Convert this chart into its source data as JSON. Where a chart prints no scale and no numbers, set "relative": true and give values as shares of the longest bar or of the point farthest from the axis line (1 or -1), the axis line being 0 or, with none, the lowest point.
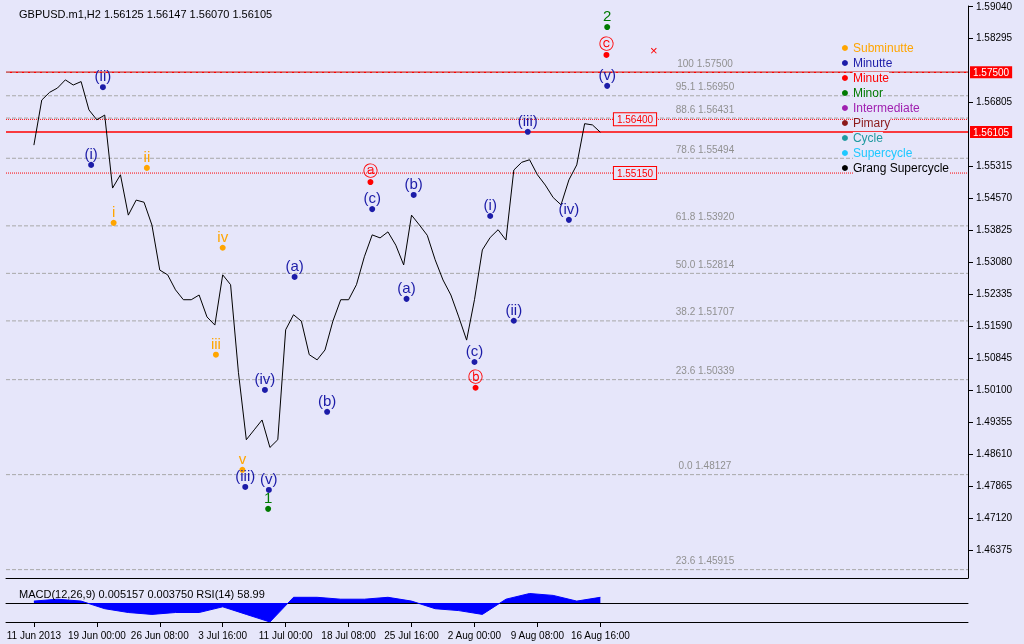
{
  "chart_data": [
    {
      "type": "line",
      "title": "GBPUSD.m1,H2 1.56125 1.56147 1.56070 1.56105",
      "xlim": [
        "2013-06-08T10:00",
        "2013-09-28T12:00"
      ],
      "ylim": [
        1.4572,
        1.5904
      ],
      "yticks": [
        {
          "value": 1.46375,
          "label": "1.46375"
        },
        {
          "value": 1.4712,
          "label": "1.47120"
        },
        {
          "value": 1.47865,
          "label": "1.47865"
        },
        {
          "value": 1.4861,
          "label": "1.48610"
        },
        {
          "value": 1.49355,
          "label": "1.49355"
        },
        {
          "value": 1.501,
          "label": "1.50100"
        },
        {
          "value": 1.50845,
          "label": "1.50845"
        },
        {
          "value": 1.5159,
          "label": "1.51590"
        },
        {
          "value": 1.52335,
          "label": "1.52335"
        },
        {
          "value": 1.5308,
          "label": "1.53080"
        },
        {
          "value": 1.53825,
          "label": "1.53825"
        },
        {
          "value": 1.5457,
          "label": "1.54570"
        },
        {
          "value": 1.55315,
          "label": "1.55315"
        },
        {
          "value": 1.56805,
          "label": "1.56805"
        },
        {
          "value": 1.58295,
          "label": "1.58295"
        },
        {
          "value": 1.5904,
          "label": "1.59040"
        }
      ],
      "tick_labels": "y",
      "legend": "top right",
      "series": [
        {
          "color": "#000000",
          "x": [
            "2013-06-11T16:00",
            "2013-06-12T14:00",
            "2013-06-13T12:00",
            "2013-06-14T10:00",
            "2013-06-15T08:00",
            "2013-06-16T06:00",
            "2013-06-17T04:00",
            "2013-06-18T02:00",
            "2013-06-19T00:00",
            "2013-06-19T22:00",
            "2013-06-20T20:00",
            "2013-06-21T18:00",
            "2013-06-22T16:00",
            "2013-06-23T14:00",
            "2013-06-24T12:00",
            "2013-06-25T10:00",
            "2013-06-26T08:00",
            "2013-06-27T06:00",
            "2013-06-28T04:00",
            "2013-06-29T02:00",
            "2013-06-30T00:00",
            "2013-06-30T22:00",
            "2013-07-01T20:00",
            "2013-07-02T18:00",
            "2013-07-03T16:00",
            "2013-07-04T14:00",
            "2013-07-05T12:00",
            "2013-07-06T10:00",
            "2013-07-07T08:00",
            "2013-07-08T06:00",
            "2013-07-09T04:00",
            "2013-07-10T02:00",
            "2013-07-11T00:00",
            "2013-07-11T22:00",
            "2013-07-12T20:00",
            "2013-07-13T18:00",
            "2013-07-14T16:00",
            "2013-07-15T14:00",
            "2013-07-16T12:00",
            "2013-07-17T10:00",
            "2013-07-18T08:00",
            "2013-07-19T06:00",
            "2013-07-20T04:00",
            "2013-07-21T02:00",
            "2013-07-22T00:00",
            "2013-07-22T22:00",
            "2013-07-23T20:00",
            "2013-07-24T18:00",
            "2013-07-25T16:00",
            "2013-07-26T14:00",
            "2013-07-27T12:00",
            "2013-07-28T10:00",
            "2013-07-29T08:00",
            "2013-07-30T06:00",
            "2013-07-31T04:00",
            "2013-08-01T02:00",
            "2013-08-02T00:00",
            "2013-08-02T22:00",
            "2013-08-03T20:00",
            "2013-08-04T18:00",
            "2013-08-05T16:00",
            "2013-08-06T14:00",
            "2013-08-07T12:00",
            "2013-08-08T10:00",
            "2013-08-09T08:00",
            "2013-08-10T06:00",
            "2013-08-11T04:00",
            "2013-08-12T02:00",
            "2013-08-13T00:00",
            "2013-08-13T22:00",
            "2013-08-14T20:00",
            "2013-08-15T18:00",
            "2013-08-16T16:00"
          ],
          "values": [
            1.558,
            1.5685,
            1.5703,
            1.5713,
            1.5732,
            1.572,
            1.5728,
            1.5662,
            1.5639,
            1.565,
            1.548,
            1.5511,
            1.5417,
            1.5452,
            1.5447,
            1.5394,
            1.5289,
            1.5278,
            1.5243,
            1.522,
            1.522,
            1.5231,
            1.518,
            1.5161,
            1.5278,
            1.5255,
            1.505,
            1.4894,
            1.4917,
            1.494,
            1.4876,
            1.4894,
            1.515,
            1.5185,
            1.517,
            1.5092,
            1.508,
            1.5103,
            1.517,
            1.522,
            1.522,
            1.5255,
            1.532,
            1.5371,
            1.5364,
            1.5378,
            1.5347,
            1.5301,
            1.5417,
            1.5394,
            1.537,
            1.5313,
            1.5266,
            1.5231,
            1.518,
            1.5126,
            1.522,
            1.5336,
            1.5365,
            1.5383,
            1.5359,
            1.5522,
            1.554,
            1.5546,
            1.5511,
            1.5487,
            1.5458,
            1.5441,
            1.5499,
            1.5534,
            1.563,
            1.5627,
            1.561
          ]
        },
        {
          "type": "scatter",
          "name": "Subminutte",
          "color": "#ffa500",
          "x": [
            "2013-06-20T23:00",
            "2013-06-24T20:00",
            "2013-07-02T21:00",
            "2013-07-03T16:00",
            "2013-07-05T23:00"
          ],
          "values": [
            1.5399,
            1.5527,
            1.5092,
            1.5341,
            1.4824
          ],
          "value_labels": [
            "i",
            "ii",
            "iii",
            "iv",
            "v"
          ]
        },
        {
          "type": "scatter",
          "name": "Minutte",
          "color": "#1c1ca8",
          "x": [
            "2013-06-18T08:00",
            "2013-06-19T17:00",
            "2013-07-06T07:00",
            "2013-07-08T14:00",
            "2013-07-09T01:00",
            "2013-07-12T01:00",
            "2013-07-15T20:00",
            "2013-07-21T02:00",
            "2013-07-25T02:00",
            "2013-07-25T22:00",
            "2013-08-02T00:00",
            "2013-08-03T20:00",
            "2013-08-06T14:00",
            "2013-08-08T05:00",
            "2013-08-13T00:00",
            "2013-08-17T11:00"
          ],
          "values": [
            1.5534,
            1.5715,
            1.4784,
            1.501,
            1.4777,
            1.5273,
            1.4959,
            1.5431,
            1.5222,
            1.5464,
            1.5075,
            1.5415,
            1.5171,
            1.5611,
            1.5406,
            1.5718
          ],
          "value_labels": [
            "(i)",
            "(ii)",
            "(iii)",
            "(iv)",
            "(v)",
            "(a)",
            "(b)",
            "(c)",
            "(a)",
            "(b)",
            "(c)",
            "(i)",
            "(ii)",
            "(iii)",
            "(iv)",
            "(v)"
          ]
        },
        {
          "type": "scatter",
          "name": "Minute",
          "color": "#ff0000",
          "x": [
            "2013-07-20T21:00",
            "2013-08-02T03:00",
            "2013-08-17T09:00"
          ],
          "values": [
            1.5494,
            1.5015,
            1.579
          ],
          "value_labels": [
            "ⓐ",
            "ⓑ",
            "ⓒ"
          ]
        },
        {
          "type": "scatter",
          "name": "Minor",
          "color": "#007a00",
          "x": [
            "2013-07-08T23:00",
            "2013-08-17T11:00"
          ],
          "values": [
            1.4733,
            1.5855
          ],
          "value_labels": [
            "1",
            "2"
          ]
        },
        {
          "type": "scatter",
          "name": "Intermediate",
          "color": "#a020b0"
        },
        {
          "type": "scatter",
          "name": "Pimary",
          "color": "#8b1a1a"
        },
        {
          "type": "scatter",
          "name": "Cycle",
          "color": "#1f9aa0"
        },
        {
          "type": "scatter",
          "name": "Supercycle",
          "color": "#1ec8ff"
        },
        {
          "type": "scatter",
          "name": "Grang Supercycle",
          "color": "#000000"
        }
      ],
      "ref_lines": [
        {
          "axis": "y",
          "value": 1.575,
          "label": "1.57500",
          "color": "#ff0000",
          "line_style": "solid"
        },
        {
          "axis": "y",
          "value": 1.56105,
          "label": "1.56105",
          "color": "#ff0000",
          "line_style": "solid"
        },
        {
          "axis": "y",
          "value": 1.564,
          "label": "1.56400",
          "color": "#ff0000",
          "line_style": "dotted"
        },
        {
          "axis": "y",
          "value": 1.5515,
          "label": "1.55150",
          "color": "#ff0000",
          "line_style": "dotted"
        },
        {
          "axis": "y",
          "value": 1.575,
          "label": "100 1.57500",
          "color": "#a8a8a8",
          "line_style": "dashed"
        },
        {
          "axis": "y",
          "value": 1.5695,
          "label": "95.1 1.56950",
          "color": "#a8a8a8",
          "line_style": "dashed"
        },
        {
          "axis": "y",
          "value": 1.56431,
          "label": "88.6 1.56431",
          "color": "#a8a8a8",
          "line_style": "dashed"
        },
        {
          "axis": "y",
          "value": 1.55494,
          "label": "78.6 1.55494",
          "color": "#a8a8a8",
          "line_style": "dashed"
        },
        {
          "axis": "y",
          "value": 1.5392,
          "label": "61.8 1.53920",
          "color": "#a8a8a8",
          "line_style": "dashed"
        },
        {
          "axis": "y",
          "value": 1.52814,
          "label": "50.0 1.52814",
          "color": "#a8a8a8",
          "line_style": "dashed"
        },
        {
          "axis": "y",
          "value": 1.51707,
          "label": "38.2 1.51707",
          "color": "#a8a8a8",
          "line_style": "dashed"
        },
        {
          "axis": "y",
          "value": 1.50339,
          "label": "23.6 1.50339",
          "color": "#a8a8a8",
          "line_style": "dashed"
        },
        {
          "axis": "y",
          "value": 1.48127,
          "label": "0.0 1.48127",
          "color": "#a8a8a8",
          "line_style": "dashed"
        },
        {
          "axis": "y",
          "value": 1.45915,
          "label": "23.6 1.45915",
          "color": "#a8a8a8",
          "line_style": "dashed"
        }
      ],
      "annotations": [
        "×"
      ]
    },
    {
      "type": "area",
      "title": "MACD(12,26,9) 0.005157 0.003750 RSI(14) 58.99",
      "relative": true,
      "xlim": [
        "2013-06-08T10:00",
        "2013-09-28T12:00"
      ],
      "xticks": [
        {
          "value": "2013-06-11T16:00",
          "label": "11 Jun 2013"
        },
        {
          "value": "2013-06-19T00:00",
          "label": "19 Jun 00:00"
        },
        {
          "value": "2013-06-26T08:00",
          "label": "26 Jun 08:00"
        },
        {
          "value": "2013-07-03T16:00",
          "label": "3 Jul 16:00"
        },
        {
          "value": "2013-07-11T00:00",
          "label": "11 Jul 00:00"
        },
        {
          "value": "2013-07-18T08:00",
          "label": "18 Jul 08:00"
        },
        {
          "value": "2013-07-25T16:00",
          "label": "25 Jul 16:00"
        },
        {
          "value": "2013-08-02T00:00",
          "label": "2 Aug 00:00"
        },
        {
          "value": "2013-08-09T08:00",
          "label": "9 Aug 08:00"
        },
        {
          "value": "2013-08-16T16:00",
          "label": "16 Aug 16:00"
        }
      ],
      "tick_labels": "x",
      "series": [
        {
          "color": "#0000ff",
          "x": [
            "2013-06-11T16:00",
            "2013-06-14T10:00",
            "2013-06-17T04:00",
            "2013-06-19T22:00",
            "2013-06-22T16:00",
            "2013-06-25T10:00",
            "2013-06-28T04:00",
            "2013-06-30T22:00",
            "2013-07-03T16:00",
            "2013-07-06T10:00",
            "2013-07-09T04:00",
            "2013-07-11T22:00",
            "2013-07-14T16:00",
            "2013-07-17T10:00",
            "2013-07-20T04:00",
            "2013-07-22T22:00",
            "2013-07-25T16:00",
            "2013-07-28T10:00",
            "2013-07-31T04:00",
            "2013-08-02T22:00",
            "2013-08-05T16:00",
            "2013-08-08T10:00",
            "2013-08-11T04:00",
            "2013-08-13T22:00",
            "2013-08-16T16:00"
          ],
          "values": [
            0.1,
            0.2,
            0.1,
            -0.3,
            -0.5,
            -0.6,
            -0.5,
            -0.5,
            -0.2,
            -0.6,
            -1,
            0.3,
            0.3,
            0.2,
            0.2,
            0.3,
            0.1,
            -0.3,
            -0.4,
            -0.6,
            0.2,
            0.5,
            0.4,
            0.1,
            0.3
          ]
        }
      ]
    }
  ]
}
